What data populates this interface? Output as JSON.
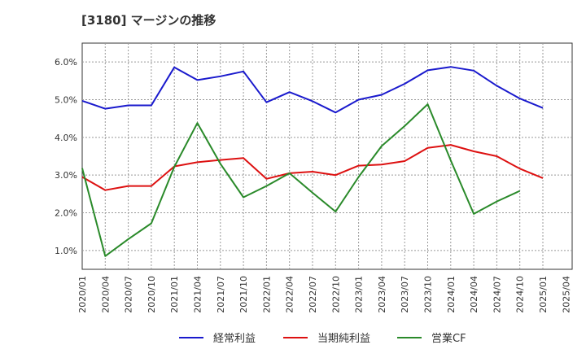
{
  "title": "[3180]  マージンの推移",
  "chart_data": {
    "type": "line",
    "title": "[3180]  マージンの推移",
    "xlabel": "",
    "ylabel": "",
    "categories": [
      "2020/01",
      "2020/04",
      "2020/07",
      "2020/10",
      "2021/01",
      "2021/04",
      "2021/07",
      "2021/10",
      "2022/01",
      "2022/04",
      "2022/07",
      "2022/10",
      "2023/01",
      "2023/04",
      "2023/07",
      "2023/10",
      "2024/01",
      "2024/04",
      "2024/07",
      "2024/10",
      "2025/01",
      "2025/04"
    ],
    "ylim": [
      0.5,
      6.5
    ],
    "yticks": [
      1.0,
      2.0,
      3.0,
      4.0,
      5.0,
      6.0
    ],
    "ytick_labels": [
      "1.0%",
      "2.0%",
      "3.0%",
      "4.0%",
      "5.0%",
      "6.0%"
    ],
    "grid": true,
    "legend_position": "bottom",
    "series": [
      {
        "name": "経常利益",
        "color": "#1a1acd",
        "values": [
          4.97,
          4.76,
          4.85,
          4.85,
          5.86,
          5.52,
          5.62,
          5.75,
          4.93,
          5.2,
          4.96,
          4.66,
          5.0,
          5.13,
          5.42,
          5.78,
          5.87,
          5.77,
          5.37,
          5.03,
          4.78,
          null
        ]
      },
      {
        "name": "当期純利益",
        "color": "#dd1111",
        "values": [
          2.95,
          2.6,
          2.71,
          2.71,
          3.23,
          3.34,
          3.4,
          3.45,
          2.9,
          3.05,
          3.09,
          3.0,
          3.25,
          3.28,
          3.37,
          3.72,
          3.8,
          3.63,
          3.5,
          3.17,
          2.92,
          null
        ]
      },
      {
        "name": "営業CF",
        "color": "#2a8a2a",
        "values": [
          3.18,
          0.85,
          1.3,
          1.72,
          3.22,
          4.38,
          3.3,
          2.41,
          2.71,
          3.05,
          2.53,
          2.03,
          2.95,
          3.77,
          4.3,
          4.88,
          3.39,
          1.97,
          2.3,
          2.58,
          null,
          null
        ]
      }
    ]
  }
}
